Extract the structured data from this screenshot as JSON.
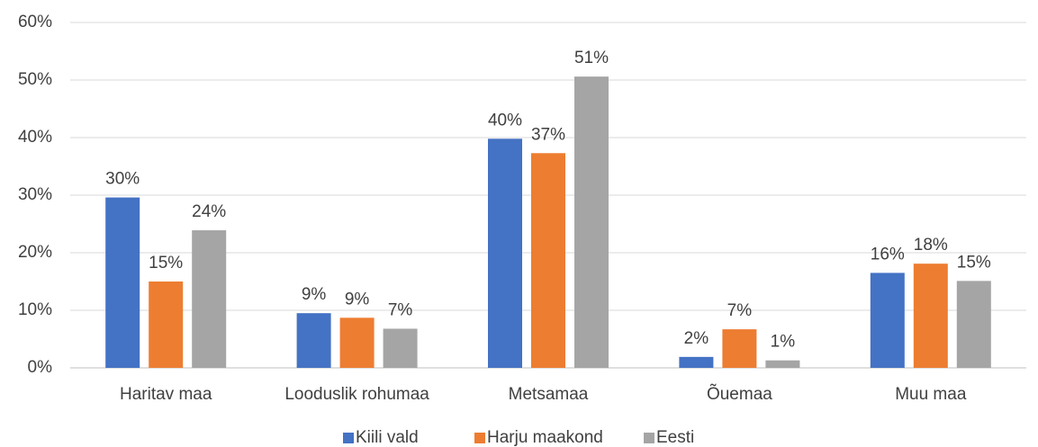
{
  "chart_data": {
    "type": "bar",
    "categories": [
      "Haritav maa",
      "Looduslik rohumaa",
      "Metsamaa",
      "Õuemaa",
      "Muu maa"
    ],
    "series": [
      {
        "name": "Kiili vald",
        "color": "#4472c4",
        "values": [
          29.6,
          9.5,
          39.8,
          1.9,
          16.5
        ],
        "value_labels": [
          "30%",
          "9%",
          "40%",
          "2%",
          "16%"
        ]
      },
      {
        "name": "Harju maakond",
        "color": "#ed7d31",
        "values": [
          15.0,
          8.7,
          37.3,
          6.7,
          18.1
        ],
        "value_labels": [
          "15%",
          "9%",
          "37%",
          "7%",
          "18%"
        ]
      },
      {
        "name": "Eesti",
        "color": "#a5a5a5",
        "values": [
          23.9,
          6.8,
          50.6,
          1.3,
          15.1
        ],
        "value_labels": [
          "24%",
          "7%",
          "51%",
          "1%",
          "15%"
        ]
      }
    ],
    "ylim": [
      0,
      60
    ],
    "yticks": [
      {
        "value": 0,
        "label": "0%"
      },
      {
        "value": 10,
        "label": "10%"
      },
      {
        "value": 20,
        "label": "20%"
      },
      {
        "value": 30,
        "label": "30%"
      },
      {
        "value": 40,
        "label": "40%"
      },
      {
        "value": 50,
        "label": "50%"
      },
      {
        "value": 60,
        "label": "60%"
      }
    ],
    "grid": true,
    "legend": "bottom"
  }
}
